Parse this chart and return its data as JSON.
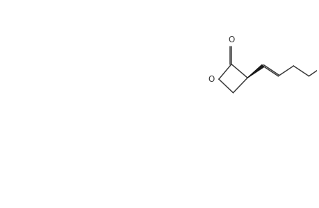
{
  "background_color": "#ffffff",
  "line_color": "#3a3a3a",
  "line_width": 1.1,
  "figsize": [
    4.6,
    3.0
  ],
  "dpi": 100
}
